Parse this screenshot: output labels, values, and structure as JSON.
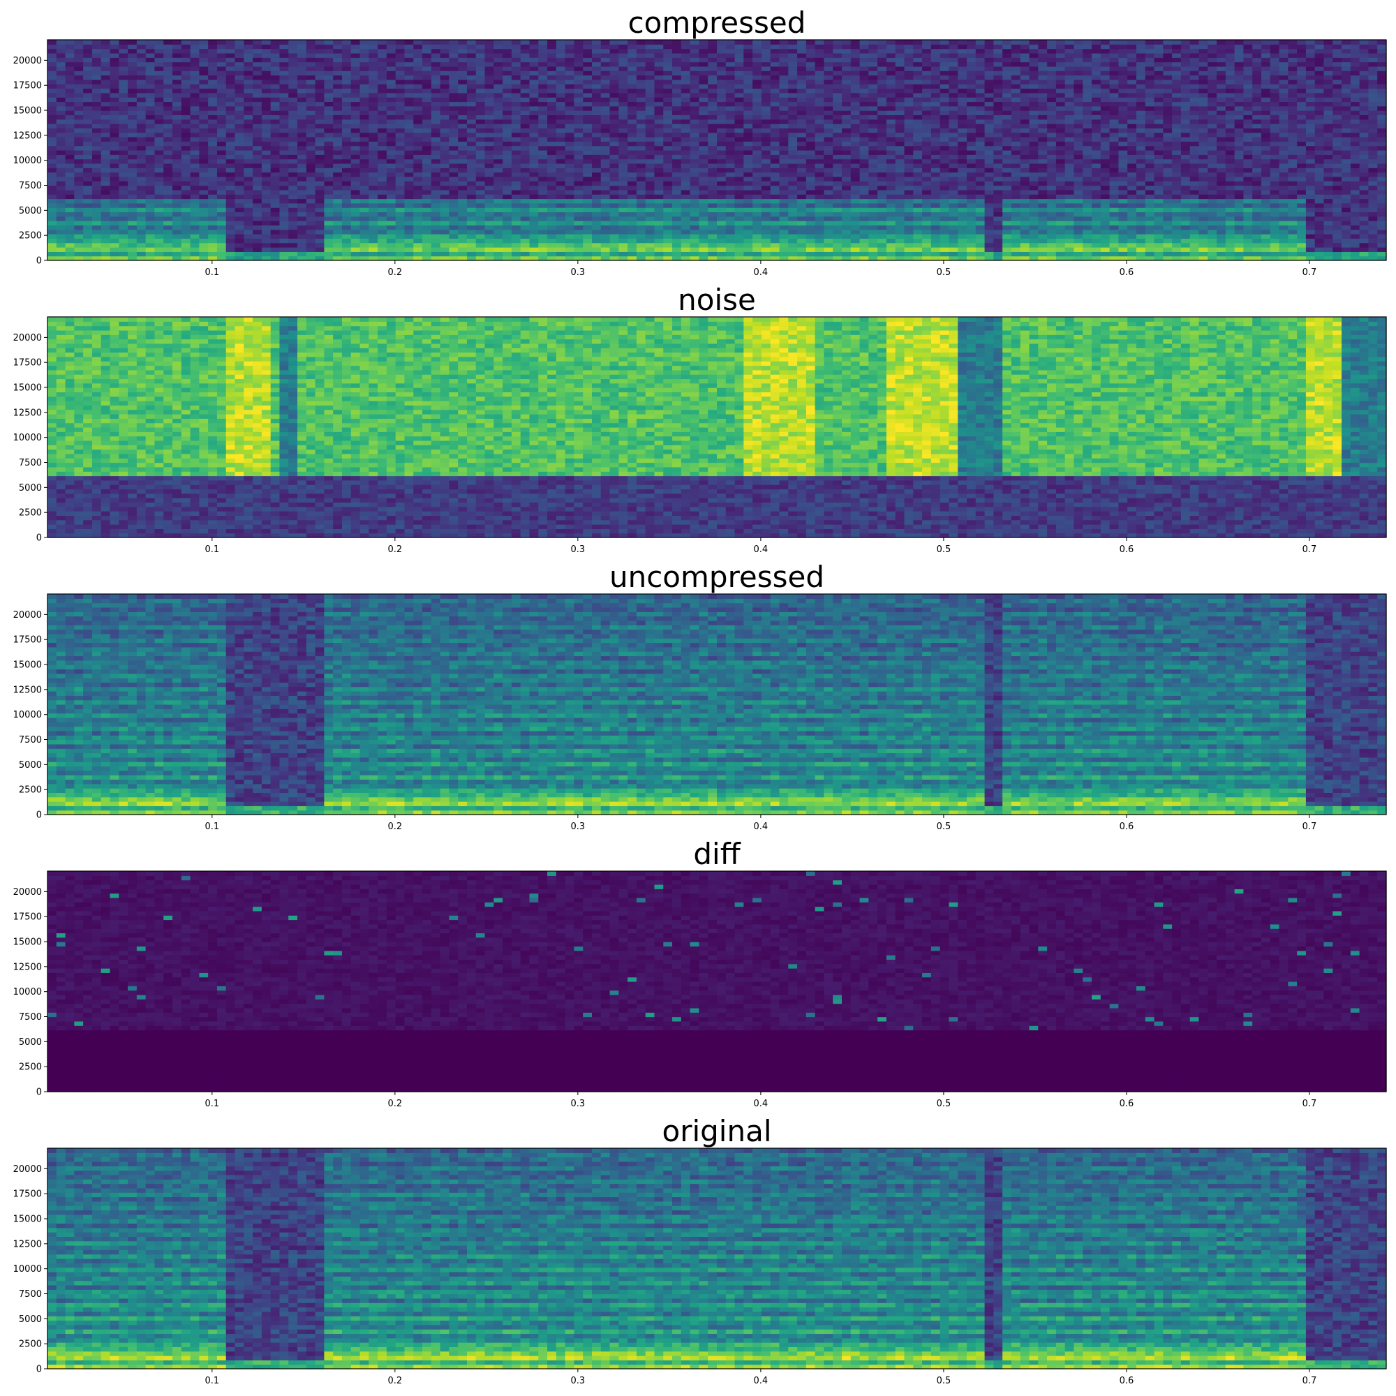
{
  "colormap": "viridis",
  "colors": {
    "viridis_low": "#440154",
    "viridis_mid": "#21918c",
    "viridis_high": "#fde725"
  },
  "chart_data": [
    {
      "type": "heatmap",
      "title": "compressed",
      "xlim": [
        0.01,
        0.742
      ],
      "ylim": [
        0,
        22050
      ],
      "x_ticks": [
        0.1,
        0.2,
        0.3,
        0.4,
        0.5,
        0.6,
        0.7
      ],
      "x_tick_labels": [
        "0.1",
        "0.2",
        "0.3",
        "0.4",
        "0.5",
        "0.6",
        "0.7"
      ],
      "y_ticks": [
        0,
        2500,
        5000,
        7500,
        10000,
        12500,
        15000,
        17500,
        20000
      ],
      "y_tick_labels": [
        "0",
        "2500",
        "5000",
        "7500",
        "10000",
        "12500",
        "15000",
        "17500",
        "20000"
      ],
      "voiced_segments": [
        [
          0.01,
          0.11
        ],
        [
          0.16,
          0.52
        ],
        [
          0.53,
          0.7
        ]
      ],
      "content_ceiling_hz": 6000,
      "background_level": 0.15,
      "speech_level": 0.7
    },
    {
      "type": "heatmap",
      "title": "noise",
      "xlim": [
        0.01,
        0.742
      ],
      "ylim": [
        0,
        22050
      ],
      "x_ticks": [
        0.1,
        0.2,
        0.3,
        0.4,
        0.5,
        0.6,
        0.7
      ],
      "x_tick_labels": [
        "0.1",
        "0.2",
        "0.3",
        "0.4",
        "0.5",
        "0.6",
        "0.7"
      ],
      "y_ticks": [
        0,
        2500,
        5000,
        7500,
        10000,
        12500,
        15000,
        17500,
        20000
      ],
      "y_tick_labels": [
        "0",
        "2500",
        "5000",
        "7500",
        "10000",
        "12500",
        "15000",
        "17500",
        "20000"
      ],
      "noise_floor_hz": 6000,
      "bright_bands": [
        [
          0.11,
          0.13
        ],
        [
          0.39,
          0.43
        ],
        [
          0.47,
          0.51
        ],
        [
          0.7,
          0.72
        ]
      ],
      "dark_bands": [
        [
          0.135,
          0.145
        ],
        [
          0.51,
          0.53
        ],
        [
          0.72,
          0.742
        ]
      ],
      "background_level": 0.72,
      "low_band_level": 0.18
    },
    {
      "type": "heatmap",
      "title": "uncompressed",
      "xlim": [
        0.01,
        0.742
      ],
      "ylim": [
        0,
        22050
      ],
      "x_ticks": [
        0.1,
        0.2,
        0.3,
        0.4,
        0.5,
        0.6,
        0.7
      ],
      "x_tick_labels": [
        "0.1",
        "0.2",
        "0.3",
        "0.4",
        "0.5",
        "0.6",
        "0.7"
      ],
      "y_ticks": [
        0,
        2500,
        5000,
        7500,
        10000,
        12500,
        15000,
        17500,
        20000
      ],
      "y_tick_labels": [
        "0",
        "2500",
        "5000",
        "7500",
        "10000",
        "12500",
        "15000",
        "17500",
        "20000"
      ],
      "voiced_segments": [
        [
          0.01,
          0.11
        ],
        [
          0.16,
          0.52
        ],
        [
          0.53,
          0.7
        ]
      ],
      "content_ceiling_hz": 22050,
      "background_level": 0.2,
      "speech_level": 0.75
    },
    {
      "type": "heatmap",
      "title": "diff",
      "xlim": [
        0.01,
        0.742
      ],
      "ylim": [
        0,
        22050
      ],
      "x_ticks": [
        0.1,
        0.2,
        0.3,
        0.4,
        0.5,
        0.6,
        0.7
      ],
      "x_tick_labels": [
        "0.1",
        "0.2",
        "0.3",
        "0.4",
        "0.5",
        "0.6",
        "0.7"
      ],
      "y_ticks": [
        0,
        2500,
        5000,
        7500,
        10000,
        12500,
        15000,
        17500,
        20000
      ],
      "y_tick_labels": [
        "0",
        "2500",
        "5000",
        "7500",
        "10000",
        "12500",
        "15000",
        "17500",
        "20000"
      ],
      "zero_region_below_hz": 6000,
      "background_level": 0.02,
      "speckle_level": 0.35
    },
    {
      "type": "heatmap",
      "title": "original",
      "xlim": [
        0.01,
        0.742
      ],
      "ylim": [
        0,
        22050
      ],
      "x_ticks": [
        0.1,
        0.2,
        0.3,
        0.4,
        0.5,
        0.6,
        0.7
      ],
      "x_tick_labels": [
        "0.1",
        "0.2",
        "0.3",
        "0.4",
        "0.5",
        "0.6",
        "0.7"
      ],
      "y_ticks": [
        0,
        2500,
        5000,
        7500,
        10000,
        12500,
        15000,
        17500,
        20000
      ],
      "y_tick_labels": [
        "0",
        "2500",
        "5000",
        "7500",
        "10000",
        "12500",
        "15000",
        "17500",
        "20000"
      ],
      "voiced_segments": [
        [
          0.01,
          0.11
        ],
        [
          0.16,
          0.52
        ],
        [
          0.53,
          0.7
        ]
      ],
      "content_ceiling_hz": 22050,
      "background_level": 0.2,
      "speech_level": 0.8
    }
  ]
}
